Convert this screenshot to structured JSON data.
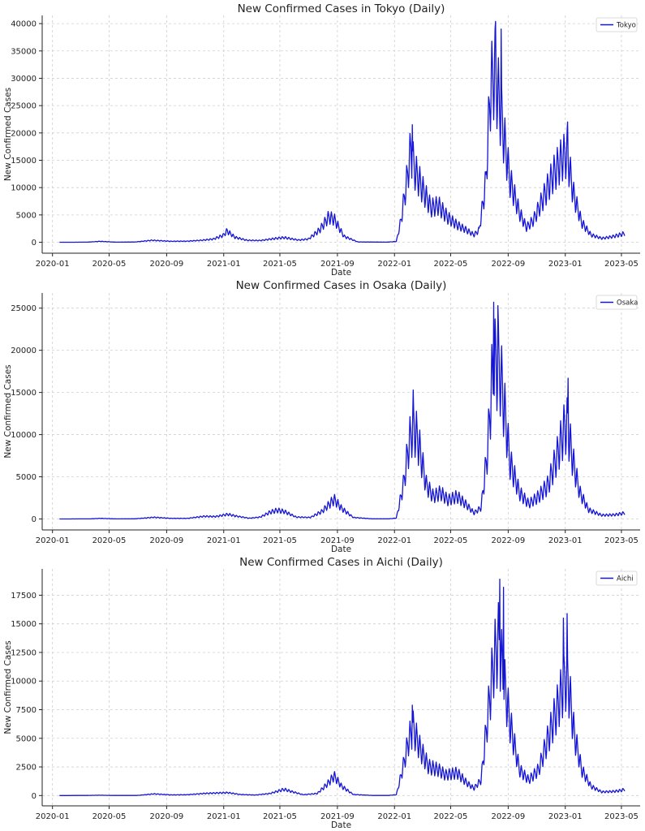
{
  "chart_data": [
    {
      "type": "line",
      "title": "New Confirmed Cases in Tokyo (Daily)",
      "xlabel": "Date",
      "ylabel": "New Confirmed Cases",
      "legend": "Tokyo",
      "legend_position": "top-right",
      "grid": true,
      "color": "#1515d6",
      "x_start": "2020-01-16",
      "x_end": "2023-05-08",
      "xlim": [
        "2019-12-10",
        "2023-06-10"
      ],
      "ylim": [
        -2000,
        41500
      ],
      "x_ticks": [
        "2020-01",
        "2020-05",
        "2020-09",
        "2021-01",
        "2021-05",
        "2021-09",
        "2022-01",
        "2022-05",
        "2022-09",
        "2023-01",
        "2023-05"
      ],
      "y_ticks": [
        0,
        5000,
        10000,
        15000,
        20000,
        25000,
        30000,
        35000,
        40000
      ],
      "weekly_amplitude": 0.55,
      "key_points": [
        [
          "2020-01-16",
          0
        ],
        [
          "2020-03-15",
          20
        ],
        [
          "2020-04-12",
          190
        ],
        [
          "2020-05-15",
          20
        ],
        [
          "2020-06-25",
          50
        ],
        [
          "2020-08-01",
          400
        ],
        [
          "2020-09-10",
          200
        ],
        [
          "2020-10-15",
          220
        ],
        [
          "2020-11-15",
          400
        ],
        [
          "2020-12-10",
          650
        ],
        [
          "2020-12-31",
          1400
        ],
        [
          "2021-01-08",
          2300
        ],
        [
          "2021-01-25",
          1000
        ],
        [
          "2021-02-20",
          400
        ],
        [
          "2021-03-20",
          350
        ],
        [
          "2021-04-20",
          750
        ],
        [
          "2021-05-10",
          950
        ],
        [
          "2021-06-10",
          450
        ],
        [
          "2021-07-01",
          650
        ],
        [
          "2021-07-25",
          2500
        ],
        [
          "2021-08-13",
          5100
        ],
        [
          "2021-08-25",
          4700
        ],
        [
          "2021-09-15",
          1200
        ],
        [
          "2021-10-15",
          60
        ],
        [
          "2021-12-15",
          25
        ],
        [
          "2022-01-05",
          150
        ],
        [
          "2022-01-15",
          4500
        ],
        [
          "2022-01-28",
          13000
        ],
        [
          "2022-02-05",
          19000
        ],
        [
          "2022-02-12",
          15000
        ],
        [
          "2022-03-01",
          11000
        ],
        [
          "2022-03-20",
          7000
        ],
        [
          "2022-04-05",
          7500
        ],
        [
          "2022-04-25",
          5000
        ],
        [
          "2022-05-15",
          3500
        ],
        [
          "2022-06-05",
          2400
        ],
        [
          "2022-06-20",
          1500
        ],
        [
          "2022-07-01",
          2500
        ],
        [
          "2022-07-15",
          12000
        ],
        [
          "2022-07-25",
          31000
        ],
        [
          "2022-08-03",
          35000
        ],
        [
          "2022-08-15",
          27000
        ],
        [
          "2022-08-25",
          20000
        ],
        [
          "2022-09-05",
          12500
        ],
        [
          "2022-09-25",
          6000
        ],
        [
          "2022-10-10",
          3000
        ],
        [
          "2022-10-25",
          4500
        ],
        [
          "2022-11-15",
          9000
        ],
        [
          "2022-12-05",
          13500
        ],
        [
          "2022-12-25",
          17000
        ],
        [
          "2023-01-05",
          18000
        ],
        [
          "2023-01-18",
          10000
        ],
        [
          "2023-02-05",
          4000
        ],
        [
          "2023-02-25",
          1500
        ],
        [
          "2023-03-20",
          800
        ],
        [
          "2023-04-10",
          1100
        ],
        [
          "2023-05-01",
          1600
        ],
        [
          "2023-05-08",
          1800
        ]
      ],
      "peaks": [
        [
          "2022-02-08",
          21500
        ],
        [
          "2022-08-05",
          40400
        ],
        [
          "2022-08-17",
          39000
        ],
        [
          "2023-01-06",
          22000
        ]
      ]
    },
    {
      "type": "line",
      "title": "New Confirmed Cases in Osaka (Daily)",
      "xlabel": "Date",
      "ylabel": "New Confirmed Cases",
      "legend": "Osaka",
      "legend_position": "top-right",
      "grid": true,
      "color": "#1515d6",
      "x_start": "2020-01-16",
      "x_end": "2023-05-08",
      "xlim": [
        "2019-12-10",
        "2023-06-10"
      ],
      "ylim": [
        -1300,
        26800
      ],
      "x_ticks": [
        "2020-01",
        "2020-05",
        "2020-09",
        "2021-01",
        "2021-05",
        "2021-09",
        "2022-01",
        "2022-05",
        "2022-09",
        "2023-01",
        "2023-05"
      ],
      "y_ticks": [
        0,
        5000,
        10000,
        15000,
        20000,
        25000
      ],
      "weekly_amplitude": 0.6,
      "key_points": [
        [
          "2020-01-16",
          0
        ],
        [
          "2020-03-20",
          10
        ],
        [
          "2020-04-12",
          80
        ],
        [
          "2020-05-15",
          10
        ],
        [
          "2020-06-25",
          20
        ],
        [
          "2020-08-05",
          220
        ],
        [
          "2020-09-10",
          80
        ],
        [
          "2020-10-15",
          80
        ],
        [
          "2020-11-20",
          350
        ],
        [
          "2020-12-15",
          320
        ],
        [
          "2021-01-10",
          620
        ],
        [
          "2021-01-30",
          350
        ],
        [
          "2021-02-25",
          100
        ],
        [
          "2021-03-20",
          250
        ],
        [
          "2021-04-10",
          900
        ],
        [
          "2021-04-25",
          1150
        ],
        [
          "2021-05-10",
          1000
        ],
        [
          "2021-06-05",
          250
        ],
        [
          "2021-07-05",
          200
        ],
        [
          "2021-07-30",
          1000
        ],
        [
          "2021-08-25",
          2600
        ],
        [
          "2021-09-10",
          1400
        ],
        [
          "2021-10-05",
          200
        ],
        [
          "2021-11-15",
          15
        ],
        [
          "2021-12-20",
          15
        ],
        [
          "2022-01-05",
          120
        ],
        [
          "2022-01-20",
          4500
        ],
        [
          "2022-02-01",
          10000
        ],
        [
          "2022-02-10",
          12500
        ],
        [
          "2022-02-20",
          10500
        ],
        [
          "2022-03-10",
          4500
        ],
        [
          "2022-03-25",
          3000
        ],
        [
          "2022-04-10",
          3500
        ],
        [
          "2022-04-25",
          2500
        ],
        [
          "2022-05-15",
          3000
        ],
        [
          "2022-06-05",
          1800
        ],
        [
          "2022-06-20",
          800
        ],
        [
          "2022-07-05",
          1500
        ],
        [
          "2022-07-18",
          8500
        ],
        [
          "2022-07-28",
          18000
        ],
        [
          "2022-08-05",
          21000
        ],
        [
          "2022-08-15",
          19500
        ],
        [
          "2022-08-25",
          14000
        ],
        [
          "2022-09-05",
          7500
        ],
        [
          "2022-09-25",
          3500
        ],
        [
          "2022-10-15",
          2000
        ],
        [
          "2022-11-05",
          3000
        ],
        [
          "2022-11-25",
          4500
        ],
        [
          "2022-12-15",
          8500
        ],
        [
          "2022-12-30",
          12000
        ],
        [
          "2023-01-05",
          12500
        ],
        [
          "2023-01-18",
          7500
        ],
        [
          "2023-02-01",
          3500
        ],
        [
          "2023-02-20",
          1200
        ],
        [
          "2023-03-20",
          500
        ],
        [
          "2023-04-15",
          550
        ],
        [
          "2023-05-01",
          700
        ],
        [
          "2023-05-08",
          800
        ]
      ],
      "peaks": [
        [
          "2022-02-10",
          15300
        ],
        [
          "2022-08-01",
          25700
        ],
        [
          "2022-08-10",
          25300
        ],
        [
          "2023-01-07",
          16700
        ]
      ]
    },
    {
      "type": "line",
      "title": "New Confirmed Cases in Aichi (Daily)",
      "xlabel": "Date",
      "ylabel": "New Confirmed Cases",
      "legend": "Aichi",
      "legend_position": "top-right",
      "grid": true,
      "color": "#1515d6",
      "x_start": "2020-01-16",
      "x_end": "2023-05-08",
      "xlim": [
        "2019-12-10",
        "2023-06-10"
      ],
      "ylim": [
        -900,
        19800
      ],
      "x_ticks": [
        "2020-01",
        "2020-05",
        "2020-09",
        "2021-01",
        "2021-05",
        "2021-09",
        "2022-01",
        "2022-05",
        "2022-09",
        "2023-01",
        "2023-05"
      ],
      "y_ticks": [
        0,
        2500,
        5000,
        7500,
        10000,
        12500,
        15000,
        17500
      ],
      "weekly_amplitude": 0.55,
      "key_points": [
        [
          "2020-01-16",
          0
        ],
        [
          "2020-03-15",
          10
        ],
        [
          "2020-04-10",
          30
        ],
        [
          "2020-05-15",
          5
        ],
        [
          "2020-06-30",
          10
        ],
        [
          "2020-08-05",
          160
        ],
        [
          "2020-09-10",
          60
        ],
        [
          "2020-10-15",
          80
        ],
        [
          "2020-11-20",
          200
        ],
        [
          "2020-12-20",
          250
        ],
        [
          "2021-01-10",
          280
        ],
        [
          "2021-02-05",
          100
        ],
        [
          "2021-03-10",
          50
        ],
        [
          "2021-04-10",
          200
        ],
        [
          "2021-05-10",
          600
        ],
        [
          "2021-05-25",
          400
        ],
        [
          "2021-06-20",
          80
        ],
        [
          "2021-07-20",
          200
        ],
        [
          "2021-08-10",
          1100
        ],
        [
          "2021-08-25",
          1900
        ],
        [
          "2021-09-10",
          900
        ],
        [
          "2021-10-05",
          100
        ],
        [
          "2021-11-15",
          10
        ],
        [
          "2021-12-20",
          10
        ],
        [
          "2022-01-05",
          80
        ],
        [
          "2022-01-18",
          2500
        ],
        [
          "2022-02-01",
          5500
        ],
        [
          "2022-02-10",
          6500
        ],
        [
          "2022-02-25",
          4500
        ],
        [
          "2022-03-15",
          2800
        ],
        [
          "2022-04-05",
          2500
        ],
        [
          "2022-04-20",
          2000
        ],
        [
          "2022-05-15",
          2200
        ],
        [
          "2022-06-05",
          1200
        ],
        [
          "2022-06-20",
          700
        ],
        [
          "2022-07-05",
          1500
        ],
        [
          "2022-07-20",
          8000
        ],
        [
          "2022-08-01",
          13000
        ],
        [
          "2022-08-12",
          15000
        ],
        [
          "2022-08-20",
          12000
        ],
        [
          "2022-09-05",
          7000
        ],
        [
          "2022-09-25",
          2500
        ],
        [
          "2022-10-15",
          1500
        ],
        [
          "2022-11-05",
          2500
        ],
        [
          "2022-11-25",
          5500
        ],
        [
          "2022-12-15",
          8500
        ],
        [
          "2022-12-30",
          11000
        ],
        [
          "2023-01-06",
          11500
        ],
        [
          "2023-01-20",
          6000
        ],
        [
          "2023-02-05",
          2500
        ],
        [
          "2023-02-25",
          900
        ],
        [
          "2023-03-20",
          350
        ],
        [
          "2023-04-15",
          400
        ],
        [
          "2023-05-01",
          500
        ],
        [
          "2023-05-08",
          600
        ]
      ],
      "peaks": [
        [
          "2022-02-08",
          7900
        ],
        [
          "2022-08-14",
          18900
        ],
        [
          "2022-08-22",
          18200
        ],
        [
          "2022-12-28",
          15500
        ],
        [
          "2023-01-05",
          15900
        ]
      ]
    }
  ]
}
